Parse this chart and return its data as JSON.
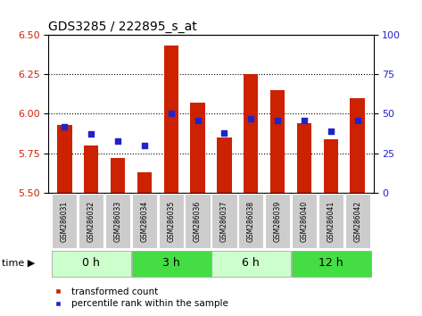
{
  "title": "GDS3285 / 222895_s_at",
  "samples": [
    "GSM286031",
    "GSM286032",
    "GSM286033",
    "GSM286034",
    "GSM286035",
    "GSM286036",
    "GSM286037",
    "GSM286038",
    "GSM286039",
    "GSM286040",
    "GSM286041",
    "GSM286042"
  ],
  "transformed_count": [
    5.93,
    5.8,
    5.72,
    5.63,
    6.43,
    6.07,
    5.85,
    6.25,
    6.15,
    5.94,
    5.84,
    6.1
  ],
  "percentile_rank": [
    42,
    37,
    33,
    30,
    50,
    46,
    38,
    47,
    46,
    46,
    39,
    46
  ],
  "groups": [
    {
      "label": "0 h",
      "start": 0,
      "end": 3,
      "color": "#ccffcc"
    },
    {
      "label": "3 h",
      "start": 3,
      "end": 6,
      "color": "#44dd44"
    },
    {
      "label": "6 h",
      "start": 6,
      "end": 9,
      "color": "#ccffcc"
    },
    {
      "label": "12 h",
      "start": 9,
      "end": 12,
      "color": "#44dd44"
    }
  ],
  "ylim_left": [
    5.5,
    6.5
  ],
  "ylim_right": [
    0,
    100
  ],
  "yticks_left": [
    5.5,
    5.75,
    6.0,
    6.25,
    6.5
  ],
  "yticks_right": [
    0,
    25,
    50,
    75,
    100
  ],
  "bar_color": "#cc2200",
  "dot_color": "#2222cc",
  "background_color": "#ffffff",
  "sample_box_color": "#cccccc",
  "title_fontsize": 10,
  "axis_fontsize": 8,
  "sample_fontsize": 5.5,
  "group_fontsize": 9,
  "legend_fontsize": 7.5
}
